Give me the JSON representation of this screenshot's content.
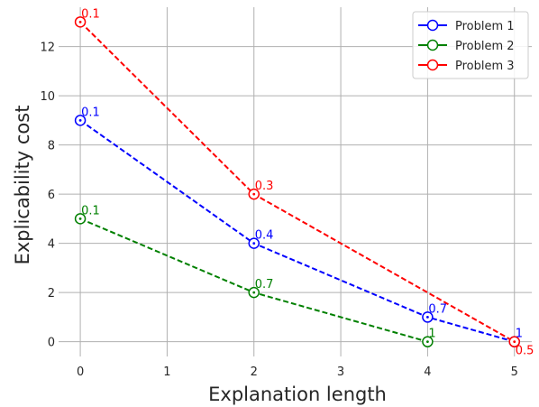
{
  "chart_data": {
    "type": "line",
    "xlabel": "Explanation length",
    "ylabel": "Explicability cost",
    "xlim": [
      -0.25,
      5.2
    ],
    "ylim": [
      -0.6,
      13.6
    ],
    "xticks": [
      0,
      1,
      2,
      3,
      4,
      5
    ],
    "yticks": [
      0,
      2,
      4,
      6,
      8,
      10,
      12
    ],
    "grid": true,
    "legend_position": "top-right",
    "series": [
      {
        "name": "Problem 1",
        "color": "#0000ff",
        "x": [
          0,
          2,
          4,
          5
        ],
        "y": [
          9,
          4,
          1,
          0
        ],
        "point_labels": [
          "0.1",
          "0.4",
          "0.7",
          "1"
        ]
      },
      {
        "name": "Problem 2",
        "color": "#008000",
        "x": [
          0,
          2,
          4
        ],
        "y": [
          5,
          2,
          0
        ],
        "point_labels": [
          "0.1",
          "0.7",
          "1"
        ]
      },
      {
        "name": "Problem 3",
        "color": "#ff0000",
        "x": [
          0,
          2,
          5
        ],
        "y": [
          13,
          6,
          0
        ],
        "point_labels": [
          "0.1",
          "0.3",
          "0.5"
        ]
      }
    ]
  }
}
